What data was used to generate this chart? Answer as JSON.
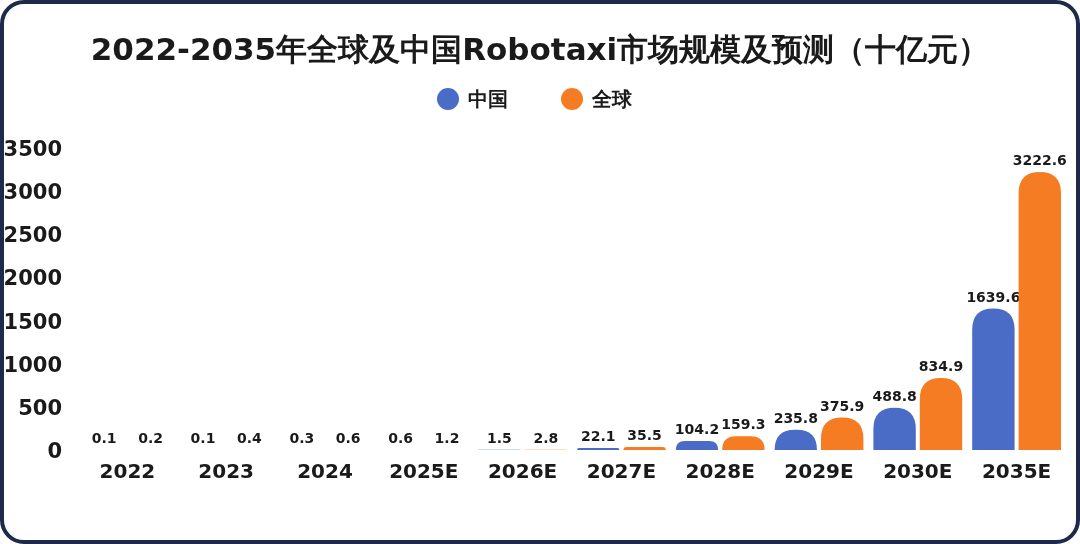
{
  "chart_data": {
    "type": "bar",
    "title": "2022-2035年全球及中国Robotaxi市场规模及预测（十亿元）",
    "categories": [
      "2022",
      "2023",
      "2024",
      "2025E",
      "2026E",
      "2027E",
      "2028E",
      "2029E",
      "2030E",
      "2035E"
    ],
    "series": [
      {
        "name": "中国",
        "color": "#4a6cc7",
        "values": [
          0.1,
          0.1,
          0.3,
          0.6,
          1.5,
          22.1,
          104.2,
          235.8,
          488.8,
          1639.6
        ]
      },
      {
        "name": "全球",
        "color": "#f57c22",
        "values": [
          0.2,
          0.4,
          0.6,
          1.2,
          2.8,
          35.5,
          159.3,
          375.9,
          834.9,
          3222.6
        ]
      }
    ],
    "ylim": [
      0,
      3500
    ],
    "yticks": [
      0,
      500,
      1000,
      1500,
      2000,
      2500,
      3000,
      3500
    ],
    "data_labels": true,
    "legend": "top",
    "grid": false
  }
}
